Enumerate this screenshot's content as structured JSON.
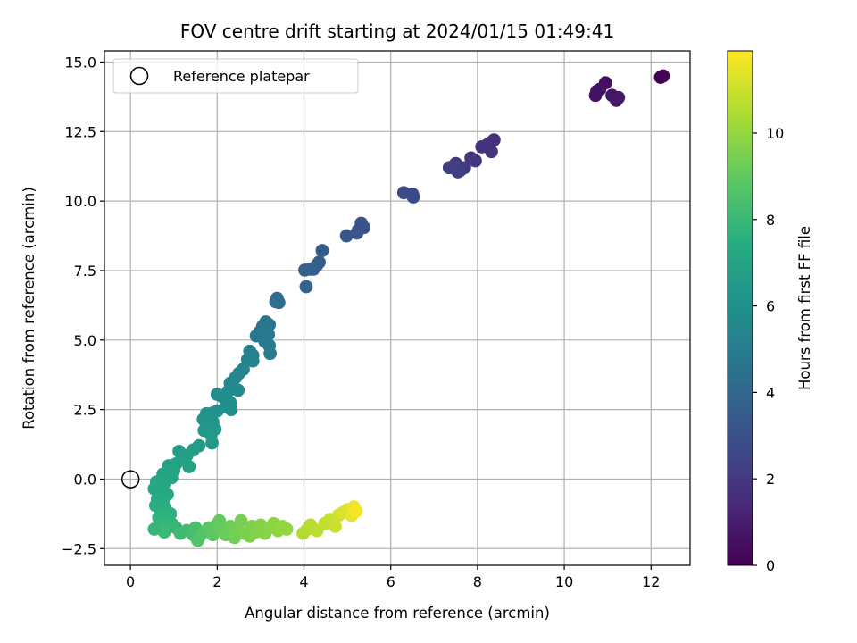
{
  "chart_data": {
    "type": "scatter",
    "title": "FOV centre drift starting at 2024/01/15 01:49:41",
    "xlabel": "Angular distance from reference (arcmin)",
    "ylabel": "Rotation from reference (arcmin)",
    "xlim": [
      -0.6,
      12.9
    ],
    "ylim": [
      -3.1,
      15.4
    ],
    "xticks": [
      0,
      2,
      4,
      6,
      8,
      10,
      12
    ],
    "yticks": [
      -2.5,
      0.0,
      2.5,
      5.0,
      7.5,
      10.0,
      12.5,
      15.0
    ],
    "xtick_labels": [
      "0",
      "2",
      "4",
      "6",
      "8",
      "10",
      "12"
    ],
    "ytick_labels": [
      "−2.5",
      "0.0",
      "2.5",
      "5.0",
      "7.5",
      "10.0",
      "12.5",
      "15.0"
    ],
    "grid": true,
    "legend": {
      "position": "top-left",
      "entries": [
        "Reference platepar"
      ]
    },
    "colorbar": {
      "label": "Hours from first FF file",
      "colormap": "viridis",
      "range": [
        0,
        11.9
      ],
      "ticks": [
        0,
        2,
        4,
        6,
        8,
        10
      ],
      "tick_labels": [
        "0",
        "2",
        "4",
        "6",
        "8",
        "10"
      ]
    },
    "reference_point": {
      "x": 0,
      "y": 0
    },
    "points": [
      {
        "x": 12.22,
        "y": 14.45,
        "c": 0.0
      },
      {
        "x": 12.28,
        "y": 14.5,
        "c": 0.1
      },
      {
        "x": 10.95,
        "y": 14.25,
        "c": 0.45
      },
      {
        "x": 10.75,
        "y": 13.95,
        "c": 0.5
      },
      {
        "x": 10.72,
        "y": 13.8,
        "c": 0.55
      },
      {
        "x": 10.82,
        "y": 14.02,
        "c": 0.6
      },
      {
        "x": 11.1,
        "y": 13.8,
        "c": 0.7
      },
      {
        "x": 11.2,
        "y": 13.62,
        "c": 0.75
      },
      {
        "x": 11.25,
        "y": 13.72,
        "c": 0.8
      },
      {
        "x": 8.38,
        "y": 12.2,
        "c": 1.6
      },
      {
        "x": 8.3,
        "y": 12.1,
        "c": 1.65
      },
      {
        "x": 8.22,
        "y": 12.02,
        "c": 1.7
      },
      {
        "x": 8.1,
        "y": 11.95,
        "c": 1.75
      },
      {
        "x": 8.32,
        "y": 11.78,
        "c": 1.8
      },
      {
        "x": 7.95,
        "y": 11.45,
        "c": 1.9
      },
      {
        "x": 7.85,
        "y": 11.55,
        "c": 1.95
      },
      {
        "x": 7.7,
        "y": 11.2,
        "c": 2.0
      },
      {
        "x": 7.5,
        "y": 11.35,
        "c": 2.05
      },
      {
        "x": 7.6,
        "y": 11.1,
        "c": 2.1
      },
      {
        "x": 7.35,
        "y": 11.2,
        "c": 2.15
      },
      {
        "x": 7.45,
        "y": 11.25,
        "c": 2.2
      },
      {
        "x": 7.55,
        "y": 11.05,
        "c": 2.25
      },
      {
        "x": 6.5,
        "y": 10.25,
        "c": 2.6
      },
      {
        "x": 6.3,
        "y": 10.3,
        "c": 2.65
      },
      {
        "x": 6.52,
        "y": 10.15,
        "c": 2.7
      },
      {
        "x": 5.32,
        "y": 9.2,
        "c": 3.0
      },
      {
        "x": 5.38,
        "y": 9.05,
        "c": 3.05
      },
      {
        "x": 5.25,
        "y": 8.95,
        "c": 3.1
      },
      {
        "x": 5.22,
        "y": 8.85,
        "c": 3.15
      },
      {
        "x": 4.98,
        "y": 8.75,
        "c": 3.2
      },
      {
        "x": 4.42,
        "y": 8.22,
        "c": 3.5
      },
      {
        "x": 4.35,
        "y": 7.8,
        "c": 3.55
      },
      {
        "x": 4.3,
        "y": 7.7,
        "c": 3.6
      },
      {
        "x": 4.22,
        "y": 7.55,
        "c": 3.65
      },
      {
        "x": 4.15,
        "y": 7.55,
        "c": 3.7
      },
      {
        "x": 4.02,
        "y": 7.52,
        "c": 3.75
      },
      {
        "x": 4.05,
        "y": 6.92,
        "c": 3.85
      },
      {
        "x": 3.38,
        "y": 6.5,
        "c": 4.2
      },
      {
        "x": 3.42,
        "y": 6.35,
        "c": 4.25
      },
      {
        "x": 3.35,
        "y": 6.38,
        "c": 4.3
      },
      {
        "x": 3.12,
        "y": 5.65,
        "c": 4.6
      },
      {
        "x": 3.2,
        "y": 5.55,
        "c": 4.65
      },
      {
        "x": 3.05,
        "y": 5.5,
        "c": 4.7
      },
      {
        "x": 2.98,
        "y": 5.3,
        "c": 4.75
      },
      {
        "x": 3.18,
        "y": 5.2,
        "c": 4.8
      },
      {
        "x": 2.9,
        "y": 5.15,
        "c": 4.85
      },
      {
        "x": 3.1,
        "y": 4.95,
        "c": 4.9
      },
      {
        "x": 3.2,
        "y": 4.8,
        "c": 4.95
      },
      {
        "x": 3.22,
        "y": 4.52,
        "c": 5.0
      },
      {
        "x": 2.75,
        "y": 4.6,
        "c": 5.2
      },
      {
        "x": 2.82,
        "y": 4.45,
        "c": 5.25
      },
      {
        "x": 2.7,
        "y": 4.3,
        "c": 5.3
      },
      {
        "x": 2.82,
        "y": 4.25,
        "c": 5.35
      },
      {
        "x": 2.6,
        "y": 3.95,
        "c": 5.4
      },
      {
        "x": 2.5,
        "y": 3.8,
        "c": 5.45
      },
      {
        "x": 2.42,
        "y": 3.65,
        "c": 5.5
      },
      {
        "x": 2.3,
        "y": 3.45,
        "c": 5.55
      },
      {
        "x": 2.38,
        "y": 3.3,
        "c": 5.6
      },
      {
        "x": 2.48,
        "y": 3.2,
        "c": 5.65
      },
      {
        "x": 2.25,
        "y": 3.15,
        "c": 5.7
      },
      {
        "x": 2.0,
        "y": 3.05,
        "c": 5.75
      },
      {
        "x": 2.1,
        "y": 2.98,
        "c": 5.8
      },
      {
        "x": 2.3,
        "y": 2.75,
        "c": 5.85
      },
      {
        "x": 2.2,
        "y": 2.6,
        "c": 5.9
      },
      {
        "x": 2.32,
        "y": 2.5,
        "c": 5.95
      },
      {
        "x": 2.0,
        "y": 2.45,
        "c": 6.0
      },
      {
        "x": 1.9,
        "y": 2.38,
        "c": 6.05
      },
      {
        "x": 1.75,
        "y": 2.35,
        "c": 6.1
      },
      {
        "x": 1.68,
        "y": 2.15,
        "c": 6.15
      },
      {
        "x": 1.9,
        "y": 2.05,
        "c": 6.2
      },
      {
        "x": 1.8,
        "y": 1.92,
        "c": 6.25
      },
      {
        "x": 1.95,
        "y": 1.8,
        "c": 6.3
      },
      {
        "x": 1.7,
        "y": 1.75,
        "c": 6.35
      },
      {
        "x": 1.85,
        "y": 1.6,
        "c": 6.4
      },
      {
        "x": 1.88,
        "y": 1.3,
        "c": 6.45
      },
      {
        "x": 1.58,
        "y": 1.2,
        "c": 6.5
      },
      {
        "x": 1.45,
        "y": 1.05,
        "c": 6.55
      },
      {
        "x": 1.12,
        "y": 1.0,
        "c": 6.6
      },
      {
        "x": 1.3,
        "y": 0.85,
        "c": 6.65
      },
      {
        "x": 1.2,
        "y": 0.72,
        "c": 6.7
      },
      {
        "x": 1.05,
        "y": 0.55,
        "c": 6.75
      },
      {
        "x": 0.88,
        "y": 0.48,
        "c": 6.8
      },
      {
        "x": 1.35,
        "y": 0.45,
        "c": 6.85
      },
      {
        "x": 1.0,
        "y": 0.32,
        "c": 6.9
      },
      {
        "x": 0.85,
        "y": 0.22,
        "c": 6.95
      },
      {
        "x": 0.75,
        "y": 0.18,
        "c": 7.0
      },
      {
        "x": 0.95,
        "y": 0.05,
        "c": 7.05
      },
      {
        "x": 0.6,
        "y": -0.1,
        "c": 7.1
      },
      {
        "x": 0.78,
        "y": -0.15,
        "c": 7.15
      },
      {
        "x": 0.55,
        "y": -0.35,
        "c": 7.2
      },
      {
        "x": 0.68,
        "y": -0.5,
        "c": 7.25
      },
      {
        "x": 0.85,
        "y": -0.55,
        "c": 7.3
      },
      {
        "x": 0.62,
        "y": -0.72,
        "c": 7.35
      },
      {
        "x": 0.75,
        "y": -0.85,
        "c": 7.4
      },
      {
        "x": 0.58,
        "y": -0.95,
        "c": 7.45
      },
      {
        "x": 0.8,
        "y": -1.05,
        "c": 7.5
      },
      {
        "x": 0.7,
        "y": -1.2,
        "c": 7.55
      },
      {
        "x": 0.92,
        "y": -1.25,
        "c": 7.6
      },
      {
        "x": 0.65,
        "y": -1.38,
        "c": 7.65
      },
      {
        "x": 0.85,
        "y": -1.45,
        "c": 7.7
      },
      {
        "x": 0.72,
        "y": -1.55,
        "c": 7.75
      },
      {
        "x": 0.95,
        "y": -1.6,
        "c": 7.8
      },
      {
        "x": 0.8,
        "y": -1.7,
        "c": 7.85
      },
      {
        "x": 0.55,
        "y": -1.8,
        "c": 7.9
      },
      {
        "x": 1.05,
        "y": -1.75,
        "c": 7.95
      },
      {
        "x": 0.78,
        "y": -1.9,
        "c": 8.0
      },
      {
        "x": 1.15,
        "y": -1.95,
        "c": 8.1
      },
      {
        "x": 1.3,
        "y": -1.85,
        "c": 8.2
      },
      {
        "x": 1.45,
        "y": -2.0,
        "c": 8.3
      },
      {
        "x": 1.5,
        "y": -1.75,
        "c": 8.4
      },
      {
        "x": 1.6,
        "y": -2.05,
        "c": 8.5
      },
      {
        "x": 1.55,
        "y": -2.2,
        "c": 8.6
      },
      {
        "x": 1.7,
        "y": -1.9,
        "c": 8.7
      },
      {
        "x": 1.8,
        "y": -1.75,
        "c": 8.8
      },
      {
        "x": 1.9,
        "y": -2.0,
        "c": 8.9
      },
      {
        "x": 1.98,
        "y": -1.65,
        "c": 9.0
      },
      {
        "x": 2.05,
        "y": -1.5,
        "c": 9.1
      },
      {
        "x": 2.1,
        "y": -1.85,
        "c": 9.15
      },
      {
        "x": 2.2,
        "y": -2.0,
        "c": 9.2
      },
      {
        "x": 2.3,
        "y": -1.7,
        "c": 9.3
      },
      {
        "x": 2.4,
        "y": -2.1,
        "c": 9.35
      },
      {
        "x": 2.5,
        "y": -1.85,
        "c": 9.4
      },
      {
        "x": 2.55,
        "y": -1.5,
        "c": 9.45
      },
      {
        "x": 2.62,
        "y": -1.95,
        "c": 9.5
      },
      {
        "x": 2.75,
        "y": -2.05,
        "c": 9.55
      },
      {
        "x": 2.8,
        "y": -1.7,
        "c": 9.6
      },
      {
        "x": 2.9,
        "y": -1.9,
        "c": 9.65
      },
      {
        "x": 3.0,
        "y": -1.65,
        "c": 9.7
      },
      {
        "x": 3.1,
        "y": -1.95,
        "c": 9.75
      },
      {
        "x": 3.2,
        "y": -1.75,
        "c": 9.8
      },
      {
        "x": 3.3,
        "y": -1.6,
        "c": 9.85
      },
      {
        "x": 3.4,
        "y": -1.85,
        "c": 9.9
      },
      {
        "x": 3.5,
        "y": -1.7,
        "c": 9.95
      },
      {
        "x": 3.6,
        "y": -1.8,
        "c": 10.0
      },
      {
        "x": 3.98,
        "y": -1.95,
        "c": 10.5
      },
      {
        "x": 4.08,
        "y": -1.8,
        "c": 10.55
      },
      {
        "x": 4.15,
        "y": -1.65,
        "c": 10.6
      },
      {
        "x": 4.3,
        "y": -1.85,
        "c": 10.7
      },
      {
        "x": 4.48,
        "y": -1.6,
        "c": 10.8
      },
      {
        "x": 4.6,
        "y": -1.45,
        "c": 10.9
      },
      {
        "x": 4.72,
        "y": -1.7,
        "c": 11.0
      },
      {
        "x": 4.8,
        "y": -1.3,
        "c": 11.1
      },
      {
        "x": 4.9,
        "y": -1.2,
        "c": 11.2
      },
      {
        "x": 5.0,
        "y": -1.1,
        "c": 11.3
      },
      {
        "x": 5.1,
        "y": -1.3,
        "c": 11.45
      },
      {
        "x": 5.15,
        "y": -1.0,
        "c": 11.6
      },
      {
        "x": 5.2,
        "y": -1.15,
        "c": 11.8
      }
    ]
  }
}
